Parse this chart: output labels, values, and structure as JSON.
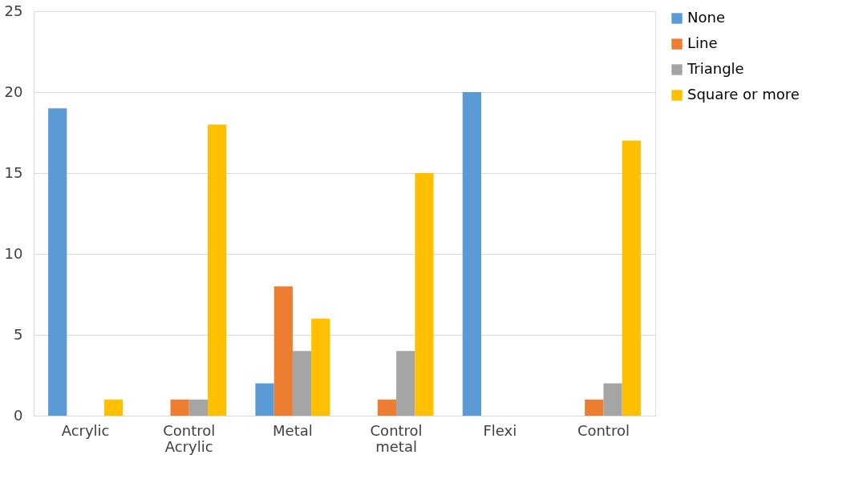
{
  "chart_data": {
    "type": "bar",
    "categories": [
      "Acrylic",
      "Control Acrylic",
      "Metal",
      "Control metal",
      "Flexi",
      "Control"
    ],
    "series": [
      {
        "name": "None",
        "color": "#5b9bd5",
        "values": [
          19,
          0,
          2,
          0,
          20,
          0
        ]
      },
      {
        "name": "Line",
        "color": "#ed7d31",
        "values": [
          0,
          1,
          8,
          1,
          0,
          1
        ]
      },
      {
        "name": "Triangle",
        "color": "#a5a5a5",
        "values": [
          0,
          1,
          4,
          4,
          0,
          2
        ]
      },
      {
        "name": "Square or more",
        "color": "#ffc000",
        "values": [
          1,
          18,
          6,
          15,
          0,
          17
        ]
      }
    ],
    "ylim": [
      0,
      25
    ],
    "yticks": [
      0,
      5,
      10,
      15,
      20,
      25
    ],
    "grid": "y",
    "legend": "right"
  }
}
